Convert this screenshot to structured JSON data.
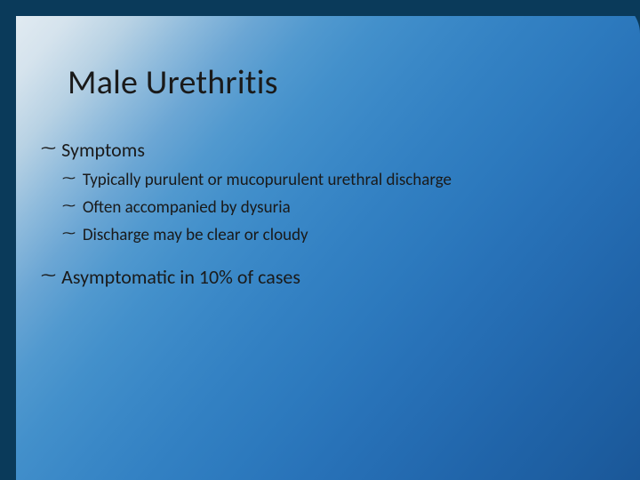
{
  "slide": {
    "title": "Male Urethritis",
    "bullets": {
      "symptoms_label": "Symptoms",
      "sub1": "Typically purulent or mucopurulent urethral discharge",
      "sub2": "Often accompanied by dysuria",
      "sub3": "Discharge may be clear or cloudy",
      "asymptomatic": "Asymptomatic in 10% of cases"
    },
    "bullet_glyph": "་⁓",
    "colors": {
      "text": "#1a1a1a",
      "frame": "#0a3a5a",
      "grad_light": "#e8eff4",
      "grad_dark": "#1a5798"
    },
    "title_fontsize": 38,
    "lvl1_fontsize": 22,
    "lvl2_fontsize": 19
  }
}
